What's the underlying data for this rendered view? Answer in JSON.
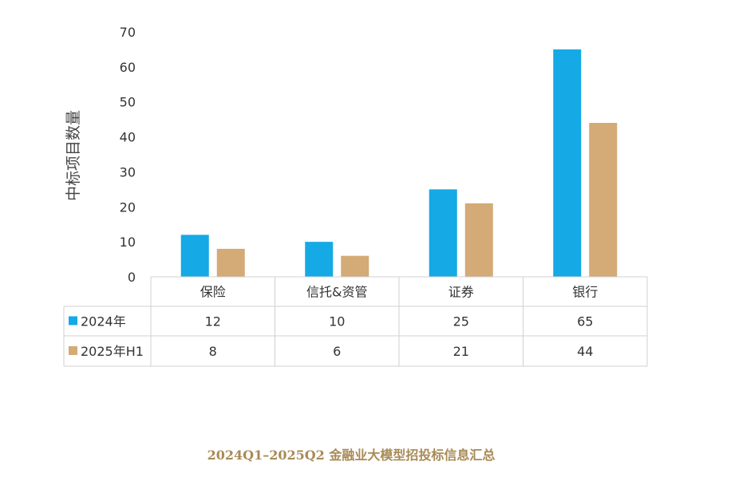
{
  "chart_data": {
    "type": "bar",
    "ylabel": "中标项目数量",
    "ylim": [
      0,
      70
    ],
    "yticks": [
      0,
      10,
      20,
      30,
      40,
      50,
      60,
      70
    ],
    "categories": [
      "保险",
      "信托&资管",
      "证券",
      "银行"
    ],
    "series": [
      {
        "name": "2024年",
        "values": [
          12,
          10,
          25,
          65
        ],
        "color": "#15a9e6"
      },
      {
        "name": "2025年H1",
        "values": [
          8,
          6,
          21,
          44
        ],
        "color": "#d4aa76"
      }
    ],
    "data_table": true,
    "grid": false
  },
  "caption": "2024Q1–2025Q2 金融业大模型招投标信息汇总"
}
